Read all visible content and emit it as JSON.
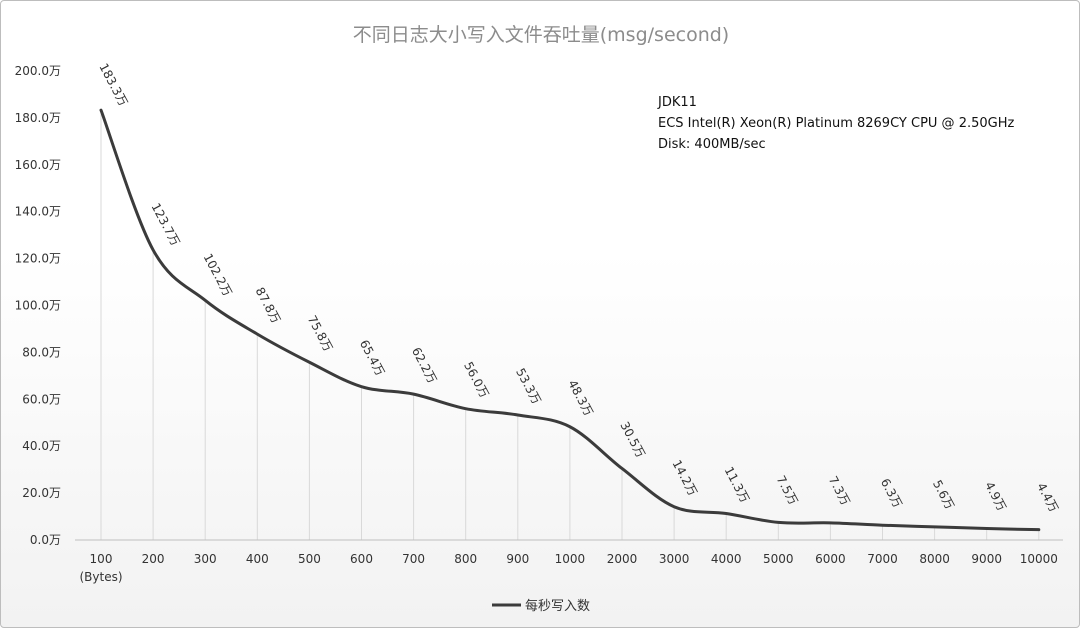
{
  "chart_data": {
    "type": "line",
    "title": "不同日志大小写入文件吞吐量(msg/second)",
    "categories": [
      "100",
      "200",
      "300",
      "400",
      "500",
      "600",
      "700",
      "800",
      "900",
      "1000",
      "2000",
      "3000",
      "4000",
      "5000",
      "6000",
      "7000",
      "8000",
      "9000",
      "10000"
    ],
    "x_unit_label": "(Bytes)",
    "series": [
      {
        "name": "每秒写入数",
        "values": [
          183.3,
          123.7,
          102.2,
          87.8,
          75.8,
          65.4,
          62.2,
          56.0,
          53.3,
          48.3,
          30.5,
          14.2,
          11.3,
          7.5,
          7.3,
          6.3,
          5.6,
          4.9,
          4.4
        ],
        "data_labels": [
          "183.3万",
          "123.7万",
          "102.2万",
          "87.8万",
          "75.8万",
          "65.4万",
          "62.2万",
          "56.0万",
          "53.3万",
          "48.3万",
          "30.5万",
          "14.2万",
          "11.3万",
          "7.5万",
          "7.3万",
          "6.3万",
          "5.6万",
          "4.9万",
          "4.4万"
        ],
        "color": "#3b3b3b"
      }
    ],
    "ylim": [
      0,
      200
    ],
    "yticks": [
      0,
      20,
      40,
      60,
      80,
      100,
      120,
      140,
      160,
      180,
      200
    ],
    "ytick_labels": [
      "0.0万",
      "20.0万",
      "40.0万",
      "60.0万",
      "80.0万",
      "100.0万",
      "120.0万",
      "140.0万",
      "160.0万",
      "180.0万",
      "200.0万"
    ],
    "xlabel": "",
    "ylabel": "",
    "grid": "vertical drop lines",
    "legend_position": "bottom-center",
    "annotations": [
      "JDK11",
      "ECS Intel(R) Xeon(R) Platinum 8269CY CPU @ 2.50GHz",
      "Disk: 400MB/sec"
    ]
  }
}
